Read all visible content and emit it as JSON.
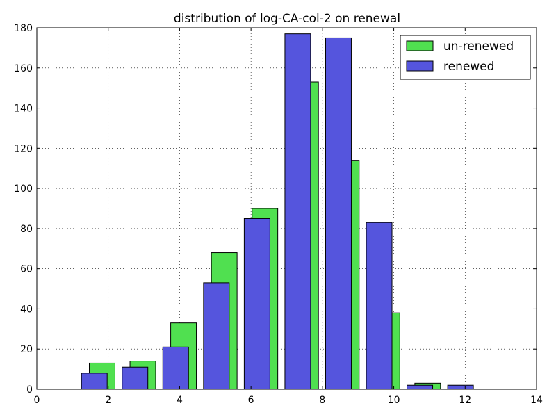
{
  "chart_data": {
    "type": "bar",
    "title": "distribution of log-CA-col-2 on renewal",
    "xlabel": "",
    "ylabel": "",
    "xlim": [
      0,
      14
    ],
    "ylim": [
      0,
      180
    ],
    "xticks": [
      "0",
      "2",
      "4",
      "6",
      "8",
      "10",
      "12",
      "14"
    ],
    "yticks": [
      "0",
      "20",
      "40",
      "60",
      "80",
      "100",
      "120",
      "140",
      "160",
      "180"
    ],
    "grid": true,
    "legend_position": "top-right",
    "series": [
      {
        "name": "un-renewed",
        "color": "#50e050",
        "bars": [
          {
            "x0": 1.47,
            "x1": 2.19,
            "value": 13
          },
          {
            "x0": 2.61,
            "x1": 3.33,
            "value": 14
          },
          {
            "x0": 3.75,
            "x1": 4.47,
            "value": 33
          },
          {
            "x0": 4.89,
            "x1": 5.61,
            "value": 68
          },
          {
            "x0": 6.03,
            "x1": 6.75,
            "value": 90
          },
          {
            "x0": 7.17,
            "x1": 7.89,
            "value": 153
          },
          {
            "x0": 8.31,
            "x1": 9.03,
            "value": 114
          },
          {
            "x0": 9.45,
            "x1": 10.17,
            "value": 38
          },
          {
            "x0": 10.59,
            "x1": 11.31,
            "value": 3
          },
          {
            "x0": 11.73,
            "x1": 12.45,
            "value": 0
          }
        ]
      },
      {
        "name": "renewed",
        "color": "#5555dd",
        "bars": [
          {
            "x0": 1.25,
            "x1": 1.97,
            "value": 8
          },
          {
            "x0": 2.39,
            "x1": 3.11,
            "value": 11
          },
          {
            "x0": 3.53,
            "x1": 4.25,
            "value": 21
          },
          {
            "x0": 4.67,
            "x1": 5.39,
            "value": 53
          },
          {
            "x0": 5.81,
            "x1": 6.53,
            "value": 85
          },
          {
            "x0": 6.95,
            "x1": 7.67,
            "value": 177
          },
          {
            "x0": 8.09,
            "x1": 8.81,
            "value": 175
          },
          {
            "x0": 9.23,
            "x1": 9.95,
            "value": 83
          },
          {
            "x0": 10.37,
            "x1": 11.09,
            "value": 2
          },
          {
            "x0": 11.51,
            "x1": 12.23,
            "value": 2
          }
        ]
      }
    ]
  }
}
